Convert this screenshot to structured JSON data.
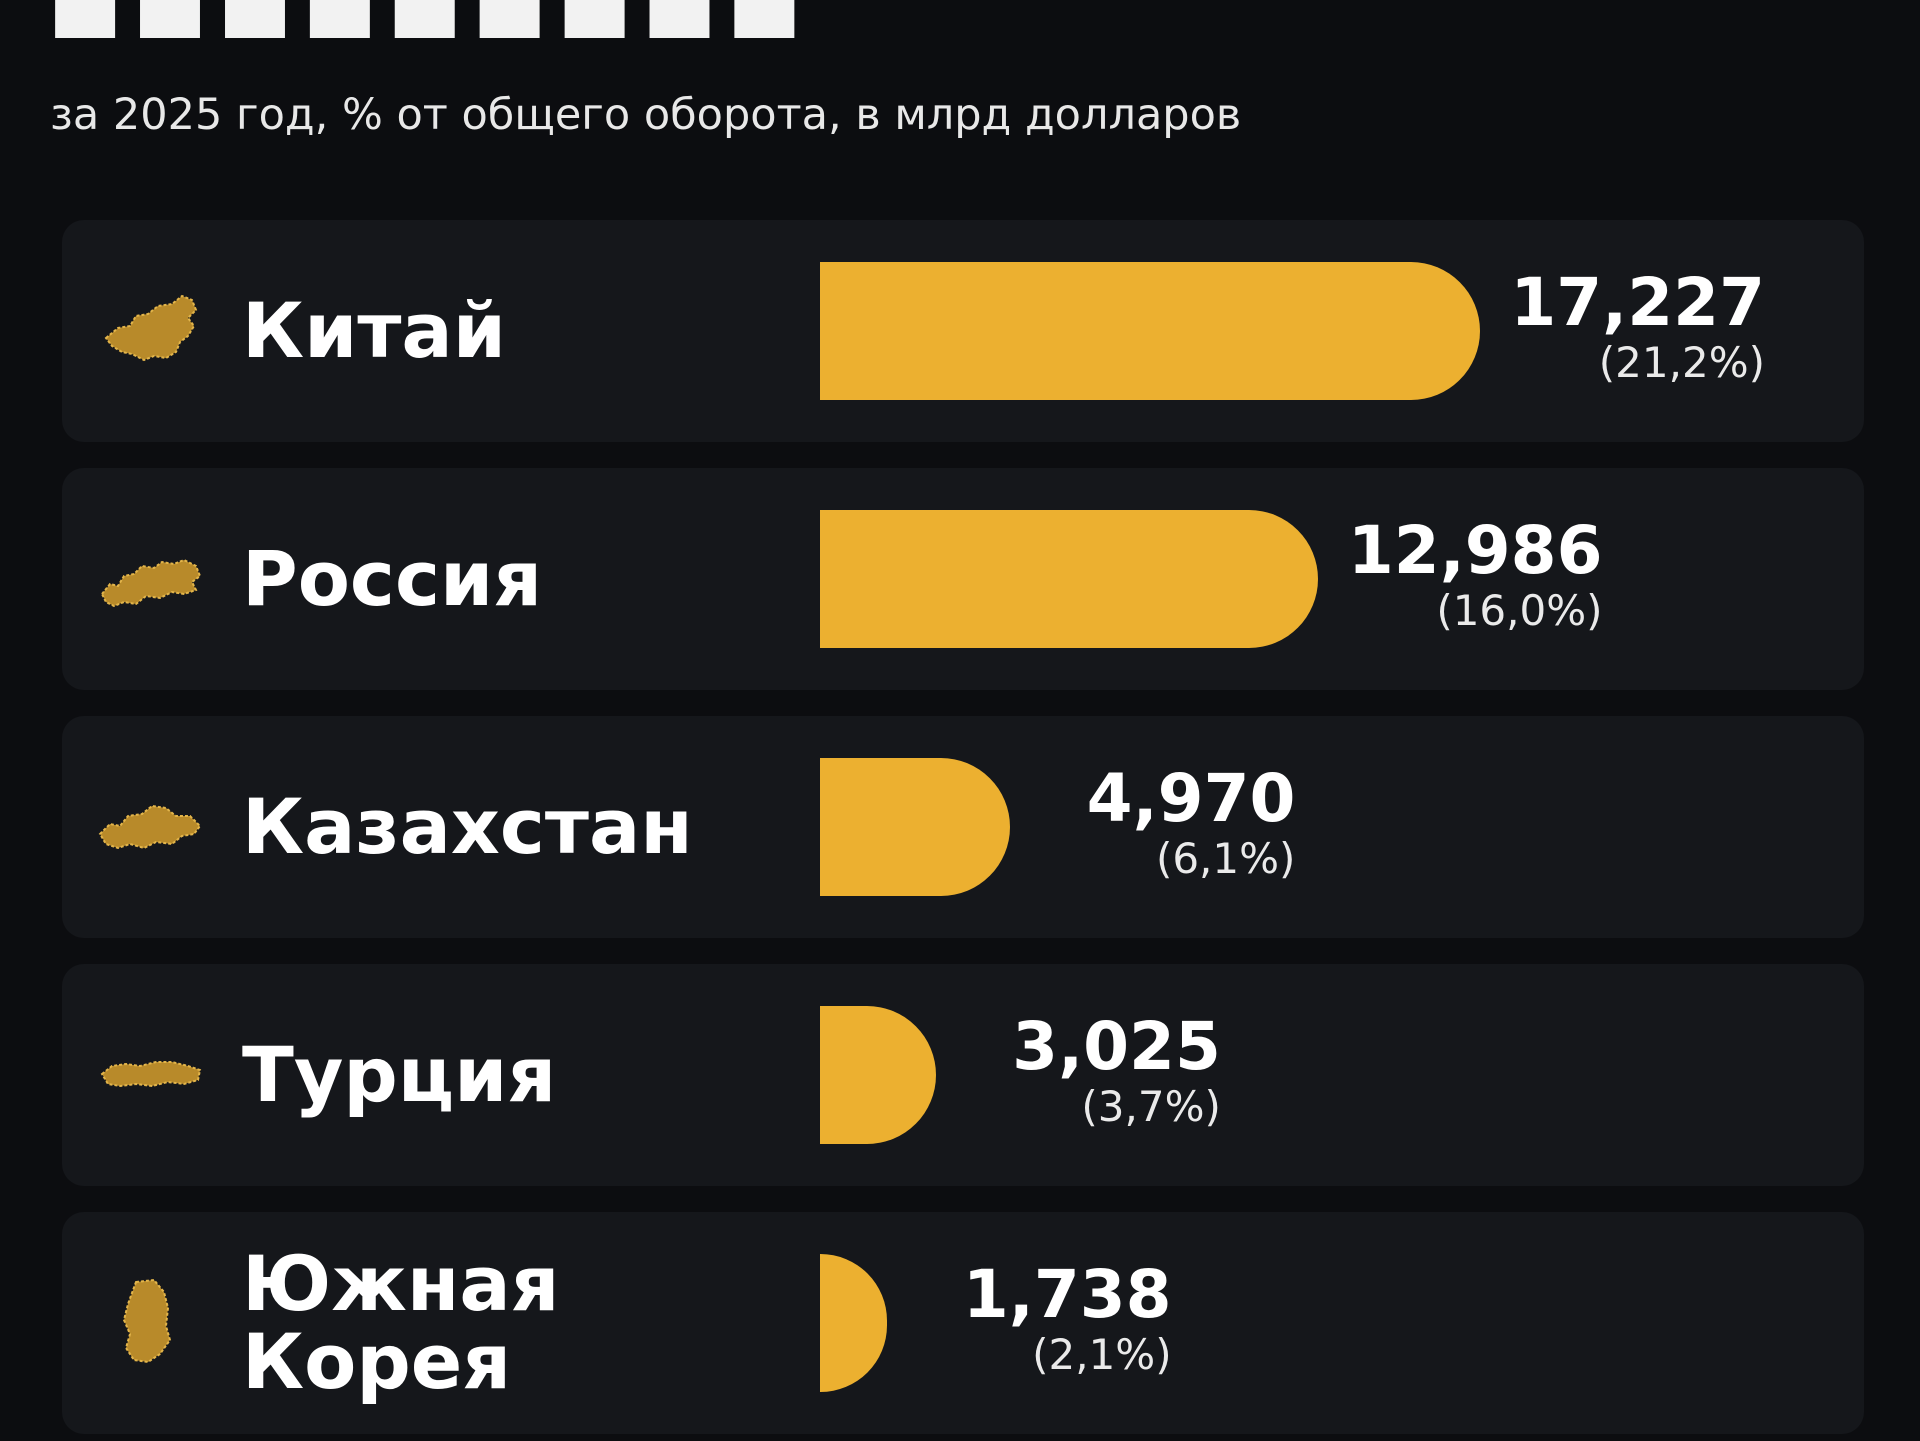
{
  "header": {
    "subtitle": "за 2025 год, % от общего оборота, в млрд долларов"
  },
  "colors": {
    "bar": "#ecb030",
    "row_background": "#15171b",
    "page_background": "#0c0d10"
  },
  "chart_data": {
    "type": "bar",
    "orientation": "horizontal",
    "categories": [
      "Китай",
      "Россия",
      "Казахстан",
      "Турция",
      "Южная Корея"
    ],
    "country_lines": [
      [
        "Китай"
      ],
      [
        "Россия"
      ],
      [
        "Казахстан"
      ],
      [
        "Турция"
      ],
      [
        "Южная",
        "Корея"
      ]
    ],
    "values": [
      17.227,
      12.986,
      4.97,
      3.025,
      1.738
    ],
    "value_labels": [
      "17,227",
      "12,986",
      "4,970",
      "3,025",
      "1,738"
    ],
    "share_labels": [
      "(21,2%)",
      "(16,0%)",
      "(6,1%)",
      "(3,7%)",
      "(2,1%)"
    ],
    "icons": [
      "china-map-icon",
      "russia-map-icon",
      "kazakhstan-map-icon",
      "turkey-map-icon",
      "south-korea-map-icon"
    ],
    "xlim": [
      0,
      17.227
    ],
    "grid": false,
    "legend": "none"
  }
}
